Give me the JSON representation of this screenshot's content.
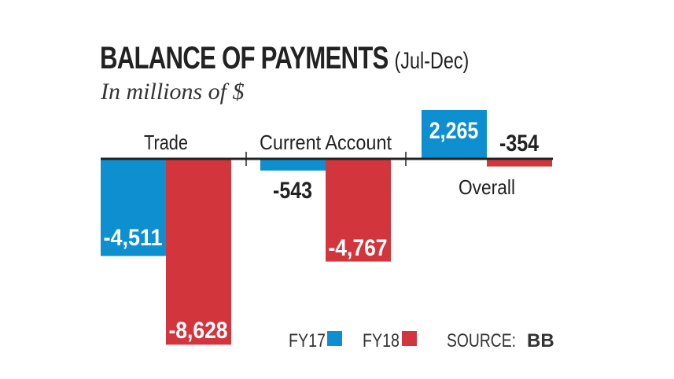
{
  "chart_data": {
    "type": "bar",
    "title": "BALANCE OF PAYMENTS",
    "title_suffix": "(Jul-Dec)",
    "subtitle": "In millions of $",
    "categories": [
      "Trade",
      "Current Account",
      "Overall"
    ],
    "series": [
      {
        "name": "FY17",
        "color": "#0d8fd0",
        "values": [
          -4511,
          -543,
          2265
        ],
        "labels": [
          "-4,511",
          "-543",
          "2,265"
        ]
      },
      {
        "name": "FY18",
        "color": "#d2353c",
        "values": [
          -8628,
          -4767,
          -354
        ],
        "labels": [
          "-8,628",
          "-4,767",
          "-354"
        ]
      }
    ],
    "source_label": "SOURCE:",
    "source": "BB",
    "legend_position": "bottom-right",
    "grid": false
  }
}
